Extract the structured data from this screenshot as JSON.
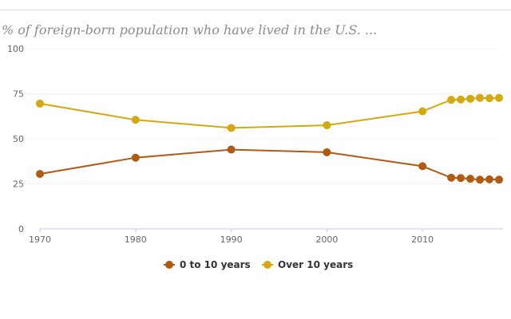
{
  "header": {
    "subtitle": "% of foreign-born population who have lived in the U.S. ..."
  },
  "chart_data": {
    "type": "line",
    "title": "",
    "subtitle": "% of foreign-born population who have lived in the U.S. ...",
    "xlabel": "",
    "ylabel": "",
    "xlim": [
      1970,
      2018
    ],
    "ylim": [
      0,
      100
    ],
    "x_ticks": [
      1970,
      1980,
      1990,
      2000,
      2010
    ],
    "y_ticks": [
      0,
      25,
      50,
      75,
      100
    ],
    "grid": "horizontal dotted",
    "legend_position": "bottom",
    "x": [
      1970,
      1980,
      1990,
      2000,
      2010,
      2013,
      2014,
      2015,
      2016,
      2017,
      2018
    ],
    "series": [
      {
        "name": "0 to 10 years",
        "color": "#b05a12",
        "values": [
          30.5,
          39.5,
          44,
          42.5,
          34.8,
          28.4,
          28.2,
          27.8,
          27.3,
          27.5,
          27.3
        ]
      },
      {
        "name": "Over 10 years",
        "color": "#d4a810",
        "values": [
          69.5,
          60.5,
          56,
          57.5,
          65.2,
          71.6,
          71.8,
          72.2,
          72.7,
          72.5,
          72.7
        ]
      }
    ]
  }
}
